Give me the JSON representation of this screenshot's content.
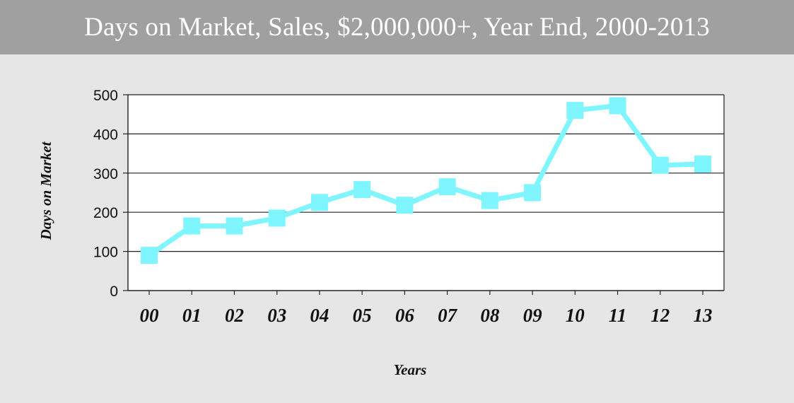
{
  "chart_data": {
    "type": "line",
    "title": "Days on Market, Sales, $2,000,000+, Year End, 2000-2013",
    "xlabel": "Years",
    "ylabel": "Days on Market",
    "categories": [
      "00",
      "01",
      "02",
      "03",
      "04",
      "05",
      "06",
      "07",
      "08",
      "09",
      "10",
      "11",
      "12",
      "13"
    ],
    "series": [
      {
        "values": [
          90,
          165,
          165,
          185,
          225,
          258,
          218,
          265,
          230,
          250,
          460,
          472,
          320,
          323
        ]
      }
    ],
    "ylim": [
      0,
      500
    ],
    "yticks": [
      "0",
      "100",
      "200",
      "300",
      "400",
      "500"
    ],
    "grid": true,
    "line_color": "#7ff6ff",
    "marker": "square"
  }
}
